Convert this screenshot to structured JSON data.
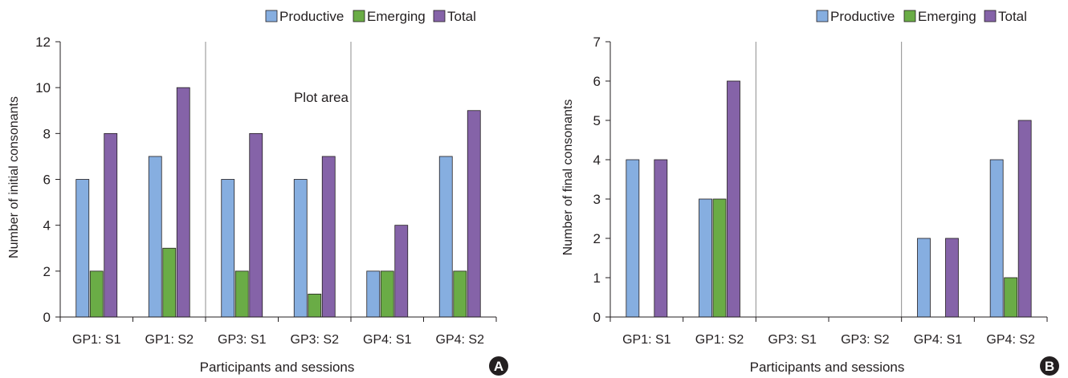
{
  "chart_data": [
    {
      "type": "bar",
      "panel_label": "A",
      "xlabel": "Participants and sessions",
      "ylabel": "Number of initial consonants",
      "ylim": [
        0,
        12
      ],
      "yticks": [
        0,
        2,
        4,
        6,
        8,
        10,
        12
      ],
      "categories": [
        "GP1: S1",
        "GP1: S2",
        "GP3: S1",
        "GP3: S2",
        "GP4: S1",
        "GP4: S2"
      ],
      "series": [
        {
          "name": "Productive",
          "values": [
            6,
            7,
            6,
            6,
            2,
            7
          ]
        },
        {
          "name": "Emerging",
          "values": [
            2,
            3,
            2,
            1,
            2,
            2
          ]
        },
        {
          "name": "Total",
          "values": [
            8,
            10,
            8,
            7,
            4,
            9
          ]
        }
      ],
      "annotation": "Plot area",
      "legend_position": "top-right",
      "group_dividers_after": [
        2,
        4
      ],
      "grid": false
    },
    {
      "type": "bar",
      "panel_label": "B",
      "xlabel": "Participants and sessions",
      "ylabel": "Number of final consonants",
      "ylim": [
        0,
        7
      ],
      "yticks": [
        0,
        1,
        2,
        3,
        4,
        5,
        6,
        7
      ],
      "categories": [
        "GP1: S1",
        "GP1: S2",
        "GP3: S1",
        "GP3: S2",
        "GP4: S1",
        "GP4: S2"
      ],
      "series": [
        {
          "name": "Productive",
          "values": [
            4,
            3,
            0,
            0,
            2,
            4
          ]
        },
        {
          "name": "Emerging",
          "values": [
            0,
            3,
            0,
            0,
            0,
            1
          ]
        },
        {
          "name": "Total",
          "values": [
            4,
            6,
            0,
            0,
            2,
            5
          ]
        }
      ],
      "legend_position": "top-right",
      "group_dividers_after": [
        2,
        4
      ],
      "grid": false
    }
  ],
  "colors": {
    "Productive": "#86aee0",
    "Emerging": "#6aac46",
    "Total": "#8563a8",
    "axis": "#231f20",
    "divider": "#8c8c8c"
  }
}
